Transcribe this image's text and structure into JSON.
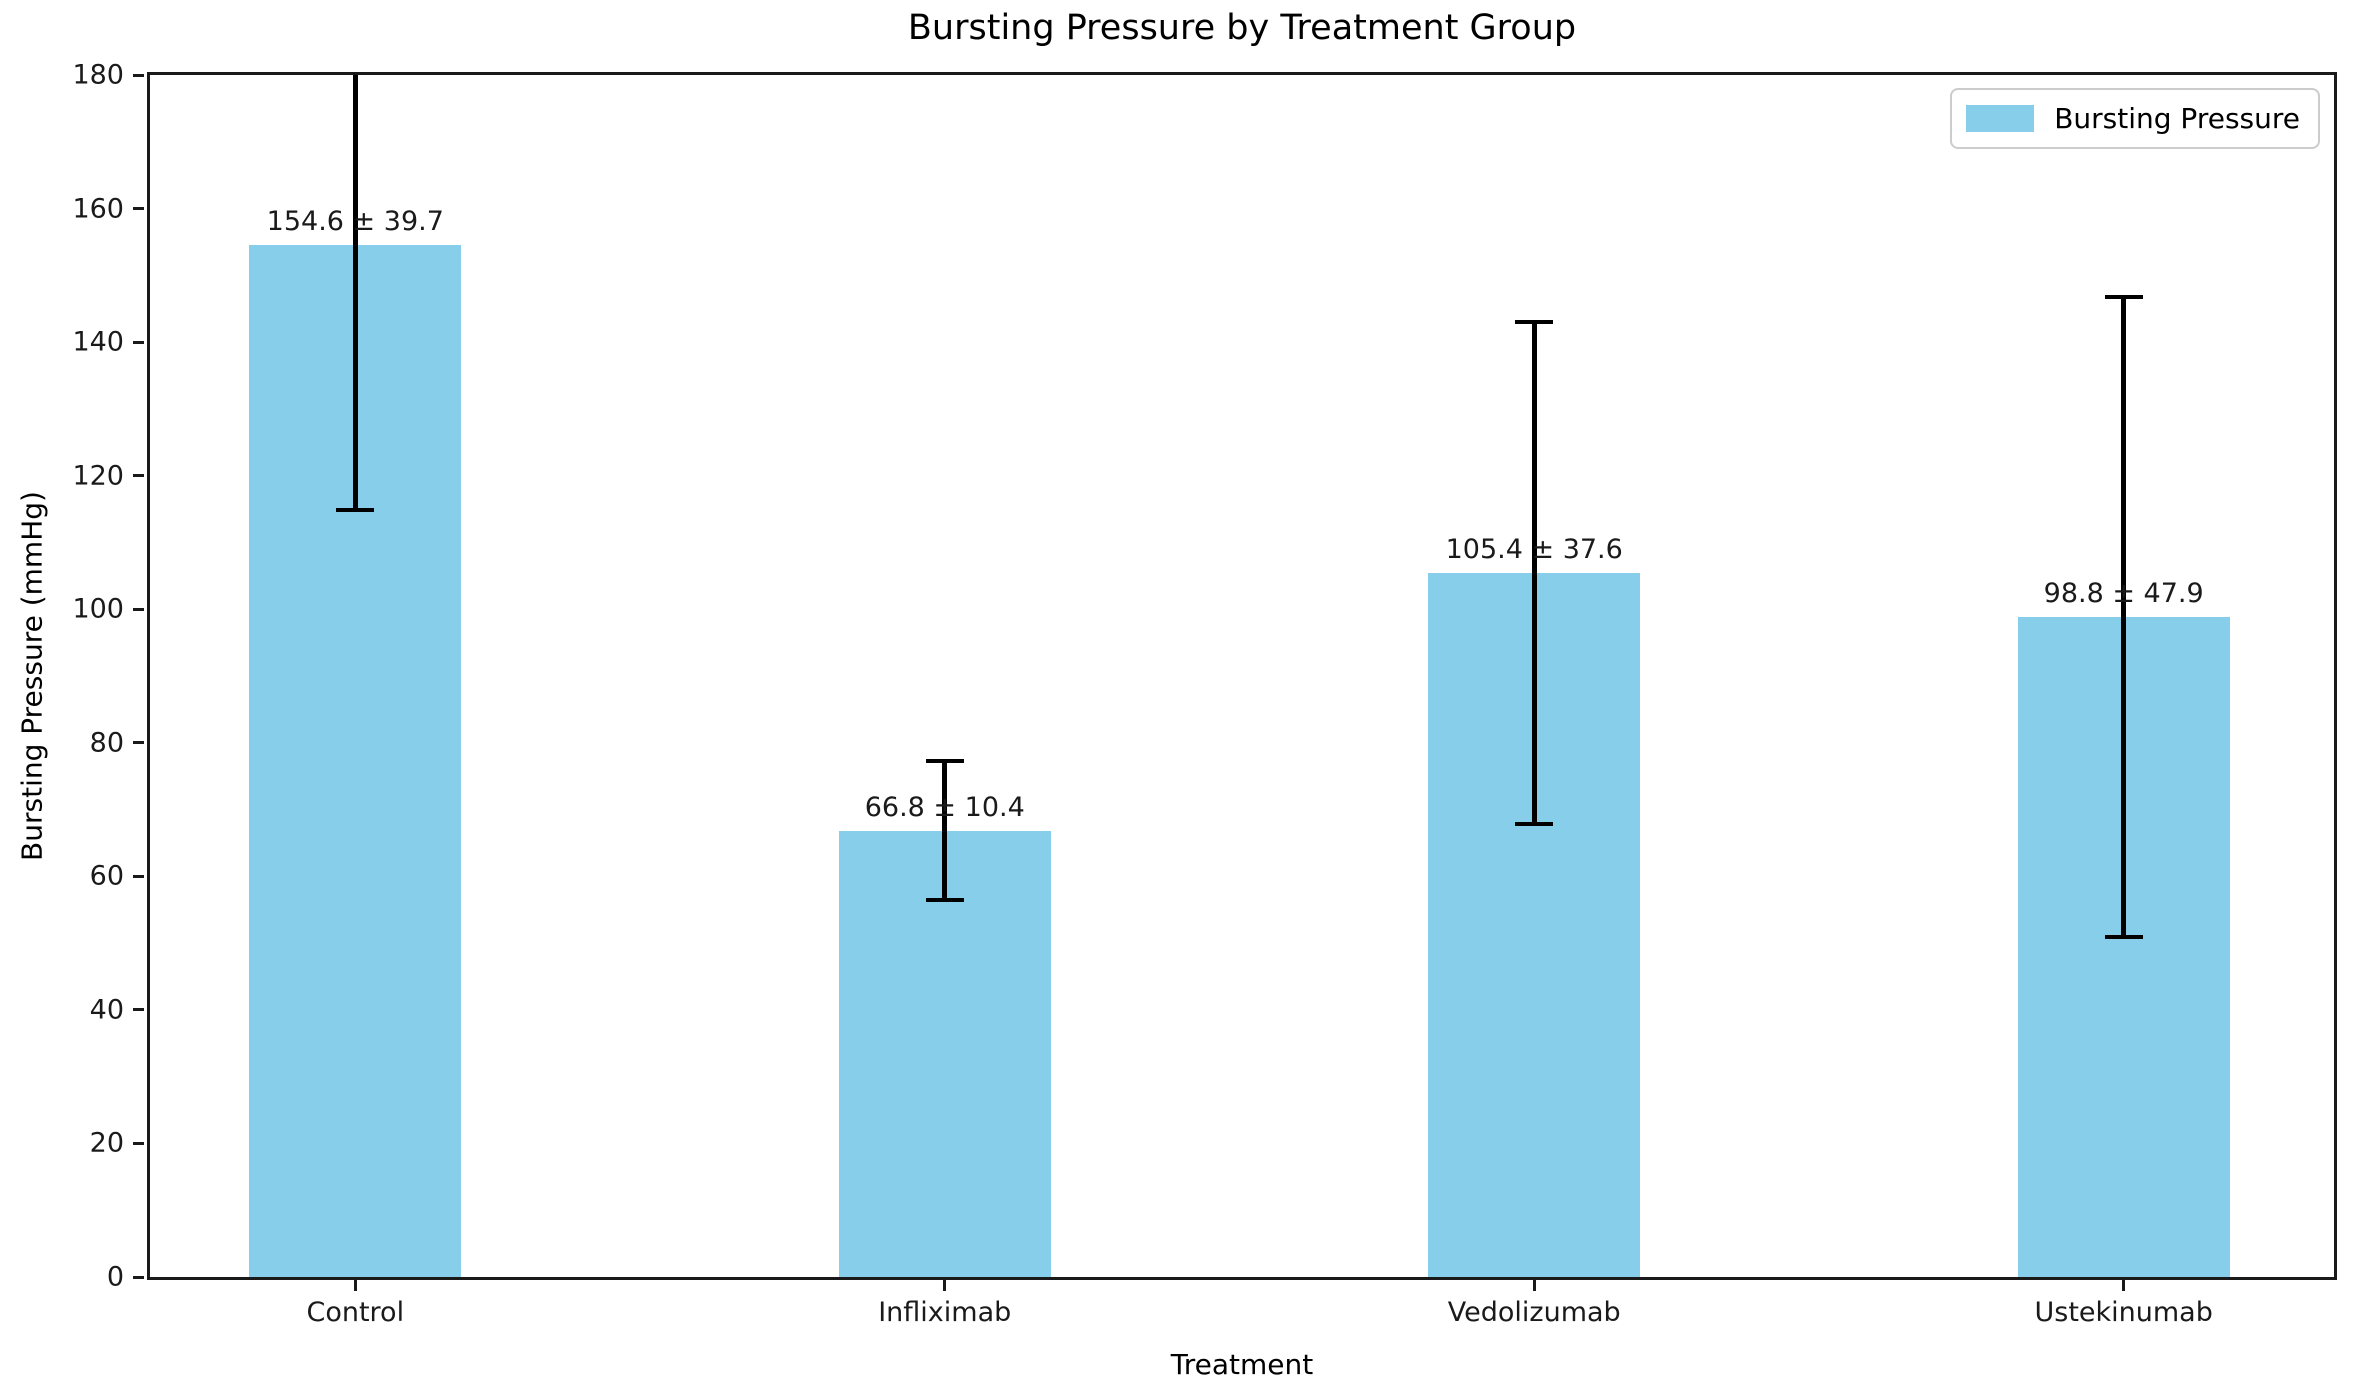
{
  "chart_data": {
    "type": "bar",
    "title": "Bursting Pressure by Treatment Group",
    "xlabel": "Treatment",
    "ylabel": "Bursting Pressure (mmHg)",
    "categories": [
      "Control",
      "Infliximab",
      "Vedolizumab",
      "Ustekinumab"
    ],
    "series": [
      {
        "name": "Bursting Pressure",
        "values": [
          154.6,
          66.8,
          105.4,
          98.8
        ],
        "errors": [
          39.7,
          10.4,
          37.6,
          47.9
        ]
      }
    ],
    "bar_value_labels": [
      "154.6 ± 39.7",
      "66.8 ± 10.4",
      "105.4 ± 37.6",
      "98.8 ± 47.9"
    ],
    "ylim": [
      0,
      180
    ],
    "yticks": [
      0,
      20,
      40,
      60,
      80,
      100,
      120,
      140,
      160,
      180
    ],
    "grid": false,
    "legend": {
      "position": "upper right",
      "entries": [
        {
          "label": "Bursting Pressure",
          "swatch_color": "#87CEEB"
        }
      ]
    },
    "colors": {
      "bar": "#87CEEB",
      "error_bar": "#000000",
      "spine": "#1a1a1a",
      "text": "#000000",
      "legend_border": "#cccccc"
    }
  }
}
